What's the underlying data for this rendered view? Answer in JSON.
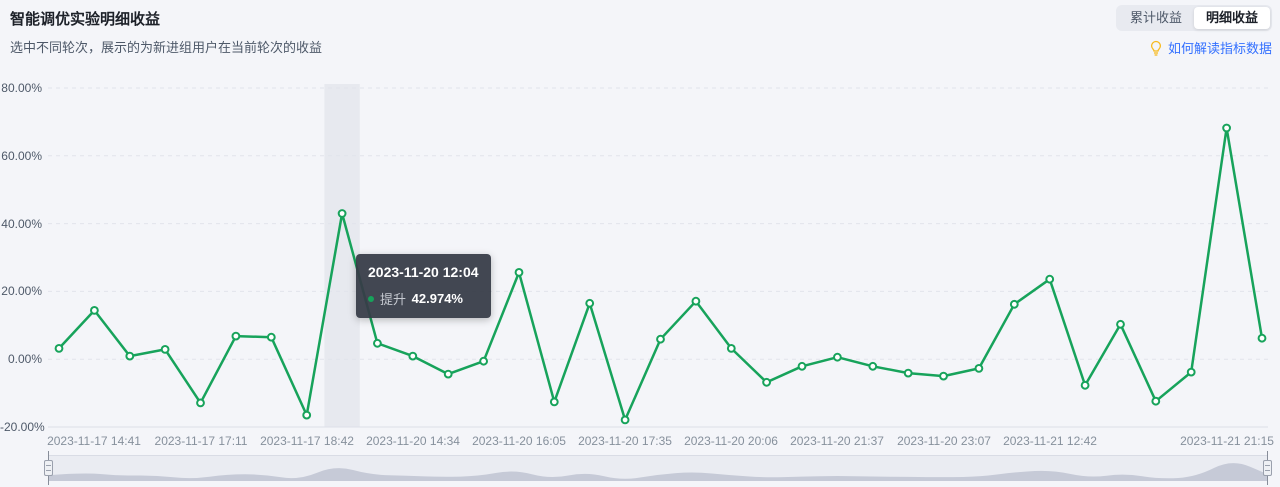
{
  "header": {
    "title": "智能调优实验明细收益",
    "subtitle": "选中不同轮次，展示的为新进组用户在当前轮次的收益",
    "toggle": {
      "options": [
        {
          "label": "累计收益",
          "active": false
        },
        {
          "label": "明细收益",
          "active": true
        }
      ]
    },
    "help_link": {
      "icon": "lightbulb-icon",
      "label": "如何解读指标数据"
    }
  },
  "tooltip": {
    "title": "2023-11-20 12:04",
    "series": "提升",
    "value": "42.974%",
    "point_index": 8
  },
  "chart_data": {
    "type": "line",
    "series": [
      {
        "name": "提升",
        "values": [
          3.2,
          14.4,
          0.9,
          2.9,
          -12.9,
          6.8,
          6.5,
          -16.5,
          42.974,
          4.7,
          0.9,
          -4.4,
          -0.6,
          25.6,
          -12.6,
          16.5,
          -17.9,
          5.9,
          17.1,
          3.2,
          -6.8,
          -2.1,
          0.6,
          -2.1,
          -4.1,
          -5.0,
          -2.7,
          16.2,
          23.6,
          -7.7,
          10.3,
          -12.4,
          -3.8,
          68.2,
          6.2
        ]
      }
    ],
    "x_tick_labels": [
      "2023-11-17 14:41",
      "2023-11-17 17:11",
      "2023-11-17 18:42",
      "2023-11-20 14:34",
      "2023-11-20 16:05",
      "2023-11-20 17:35",
      "2023-11-20 20:06",
      "2023-11-20 21:37",
      "2023-11-20 23:07",
      "2023-11-21 12:42",
      "2023-11-21 21:15"
    ],
    "x_tick_indices": [
      1,
      4,
      7,
      10,
      13,
      16,
      19,
      22,
      25,
      28,
      33
    ],
    "y_ticks": [
      {
        "label": "80.00%",
        "value": 80
      },
      {
        "label": "60.00%",
        "value": 60
      },
      {
        "label": "40.00%",
        "value": 40
      },
      {
        "label": "20.00%",
        "value": 20
      },
      {
        "label": "0.00%",
        "value": 0
      },
      {
        "label": "-20.00%",
        "value": -20
      }
    ],
    "ylim": [
      -20,
      80
    ],
    "grid": "dashed-horizontal",
    "legend_position": "none",
    "highlight_index": 8,
    "colors": {
      "line": "#17a35b",
      "marker_fill": "#ffffff",
      "grid_line": "#e1e4eb",
      "axis_line": "#dde0e8",
      "highlight_band": "#e7e9ef",
      "slider_track": "#eaecf2",
      "slider_shadow": "#c6cad7"
    }
  }
}
